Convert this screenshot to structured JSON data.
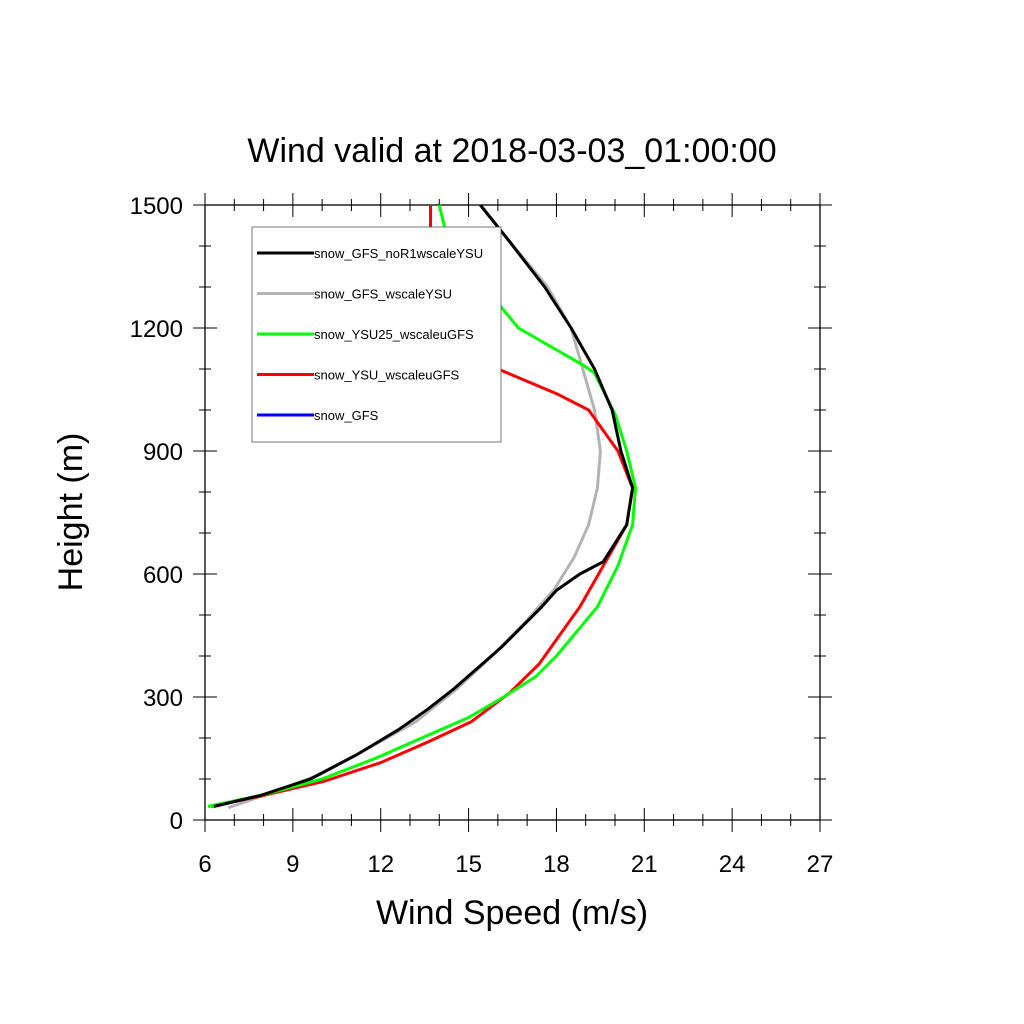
{
  "chart_data": {
    "type": "line",
    "title": "Wind valid at 2018-03-03_01:00:00",
    "xlabel": "Wind Speed (m/s)",
    "ylabel": "Height (m)",
    "xlim": [
      6,
      27
    ],
    "ylim": [
      0,
      1500
    ],
    "xticks": [
      "6",
      "9",
      "12",
      "15",
      "18",
      "21",
      "24",
      "27"
    ],
    "yticks": [
      "0",
      "300",
      "600",
      "900",
      "1200",
      "1500"
    ],
    "legend_position": "top-left",
    "grid": false,
    "series": [
      {
        "name": "snow_GFS_noR1wscaleYSU",
        "color": "#000000",
        "points": [
          [
            6.3,
            33
          ],
          [
            7.9,
            60
          ],
          [
            9.6,
            100
          ],
          [
            11.2,
            160
          ],
          [
            12.6,
            220
          ],
          [
            13.6,
            270
          ],
          [
            14.5,
            320
          ],
          [
            15.3,
            370
          ],
          [
            16.1,
            420
          ],
          [
            16.8,
            470
          ],
          [
            17.5,
            520
          ],
          [
            18.0,
            560
          ],
          [
            18.8,
            600
          ],
          [
            19.6,
            630
          ],
          [
            20.4,
            720
          ],
          [
            20.6,
            810
          ],
          [
            20.2,
            900
          ],
          [
            19.9,
            1000
          ],
          [
            19.3,
            1100
          ],
          [
            18.5,
            1200
          ],
          [
            17.6,
            1300
          ],
          [
            16.3,
            1420
          ],
          [
            15.4,
            1500
          ]
        ]
      },
      {
        "name": "snow_GFS_wscaleYSU",
        "color": "#b3b3b3",
        "points": [
          [
            6.8,
            30
          ],
          [
            8.0,
            60
          ],
          [
            9.9,
            110
          ],
          [
            11.7,
            180
          ],
          [
            13.2,
            240
          ],
          [
            14.6,
            320
          ],
          [
            15.8,
            400
          ],
          [
            16.9,
            480
          ],
          [
            17.9,
            560
          ],
          [
            18.6,
            640
          ],
          [
            19.1,
            720
          ],
          [
            19.4,
            810
          ],
          [
            19.5,
            900
          ],
          [
            19.3,
            1000
          ],
          [
            18.9,
            1100
          ],
          [
            18.5,
            1200
          ],
          [
            17.7,
            1300
          ],
          [
            16.3,
            1420
          ],
          [
            15.4,
            1500
          ]
        ]
      },
      {
        "name": "snow_YSU25_wscaleuGFS",
        "color": "#00ff00",
        "points": [
          [
            6.1,
            33
          ],
          [
            7.9,
            60
          ],
          [
            10.0,
            100
          ],
          [
            11.8,
            150
          ],
          [
            13.4,
            200
          ],
          [
            15.0,
            250
          ],
          [
            16.2,
            300
          ],
          [
            17.3,
            350
          ],
          [
            18.0,
            400
          ],
          [
            18.7,
            460
          ],
          [
            19.4,
            520
          ],
          [
            20.1,
            620
          ],
          [
            20.6,
            720
          ],
          [
            20.7,
            810
          ],
          [
            20.4,
            900
          ],
          [
            20.0,
            990
          ],
          [
            19.3,
            1090
          ],
          [
            18.9,
            1110
          ],
          [
            16.7,
            1200
          ],
          [
            15.2,
            1330
          ],
          [
            14.3,
            1410
          ],
          [
            14.0,
            1500
          ]
        ]
      },
      {
        "name": "snow_YSU_wscaleuGFS",
        "color": "#ff0000",
        "points": [
          [
            6.2,
            33
          ],
          [
            8.0,
            60
          ],
          [
            10.1,
            95
          ],
          [
            12.0,
            140
          ],
          [
            13.6,
            190
          ],
          [
            15.1,
            240
          ],
          [
            16.4,
            310
          ],
          [
            17.4,
            380
          ],
          [
            18.1,
            450
          ],
          [
            18.8,
            520
          ],
          [
            19.6,
            620
          ],
          [
            20.4,
            720
          ],
          [
            20.6,
            810
          ],
          [
            20.1,
            900
          ],
          [
            19.1,
            1000
          ],
          [
            18.0,
            1040
          ],
          [
            16.0,
            1100
          ],
          [
            14.8,
            1210
          ],
          [
            14.0,
            1300
          ],
          [
            13.7,
            1380
          ],
          [
            13.7,
            1500
          ]
        ]
      },
      {
        "name": "snow_GFS",
        "color": "#0000ff",
        "points": [
          [
            6.8,
            30
          ],
          [
            8.0,
            60
          ],
          [
            9.9,
            110
          ],
          [
            11.7,
            180
          ],
          [
            13.2,
            240
          ],
          [
            14.6,
            320
          ],
          [
            15.8,
            400
          ],
          [
            16.9,
            480
          ],
          [
            17.9,
            560
          ],
          [
            18.6,
            640
          ],
          [
            19.1,
            720
          ],
          [
            19.4,
            810
          ],
          [
            19.5,
            900
          ],
          [
            19.3,
            1000
          ],
          [
            18.9,
            1100
          ],
          [
            18.5,
            1200
          ],
          [
            17.7,
            1300
          ],
          [
            16.3,
            1420
          ],
          [
            15.4,
            1500
          ]
        ]
      }
    ]
  }
}
